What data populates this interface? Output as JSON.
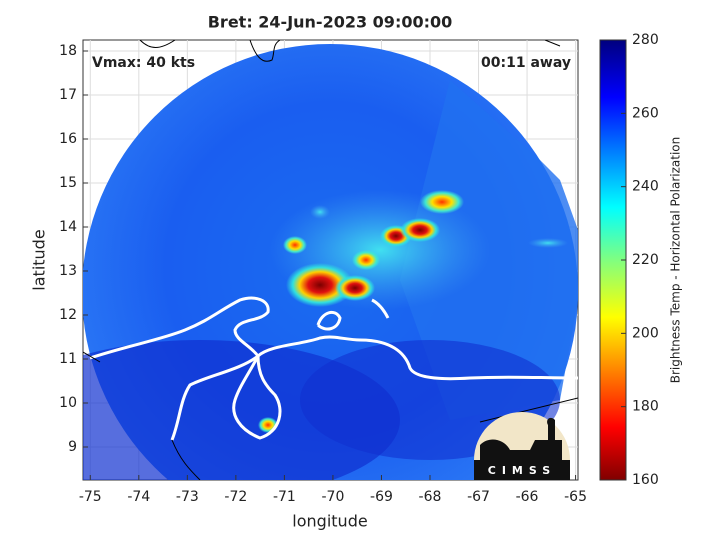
{
  "chart_data": {
    "type": "map",
    "title": "Bret: 24-Jun-2023 09:00:00",
    "xlabel": "longitude",
    "ylabel": "latitude",
    "xlim": [
      -75.15,
      -64.95
    ],
    "ylim": [
      8.25,
      18.25
    ],
    "xticks": [
      -75,
      -74,
      -73,
      -72,
      -71,
      -70,
      -69,
      -68,
      -67,
      -66,
      -65
    ],
    "yticks": [
      9,
      10,
      11,
      12,
      13,
      14,
      15,
      16,
      17,
      18
    ],
    "grid": true,
    "annotations": [
      "Vmax: 40 kts",
      "00:11 away"
    ],
    "colorbar": {
      "label": "Brightness Temp - Horizontal Polarization",
      "clim": [
        160,
        280
      ],
      "ticks": [
        160,
        180,
        200,
        220,
        240,
        260,
        280
      ]
    },
    "logo_text": "CIMSS"
  }
}
